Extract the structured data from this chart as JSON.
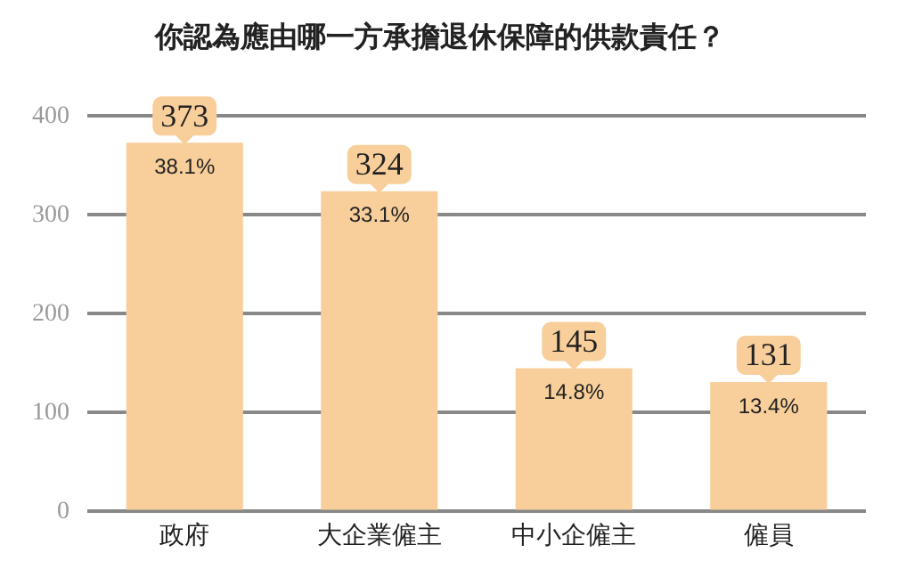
{
  "chart_data": {
    "type": "bar",
    "title": "你認為應由哪一方承擔退休保障的供款責任？",
    "categories": [
      "政府",
      "大企業僱主",
      "中小企僱主",
      "僱員"
    ],
    "values": [
      373,
      324,
      145,
      131
    ],
    "color": "#f8cf9a",
    "ylim": [
      0,
      400
    ],
    "yticks": [
      0,
      100,
      200,
      300,
      400
    ],
    "grid": "y",
    "legend": false,
    "data_labels": true,
    "annotations": [
      {
        "text": "38.1%",
        "x": "政府",
        "y": 373
      },
      {
        "text": "33.1%",
        "x": "大企業僱主",
        "y": 324
      },
      {
        "text": "14.8%",
        "x": "中小企僱主",
        "y": 145
      },
      {
        "text": "13.4%",
        "x": "僱員",
        "y": 131
      }
    ]
  }
}
